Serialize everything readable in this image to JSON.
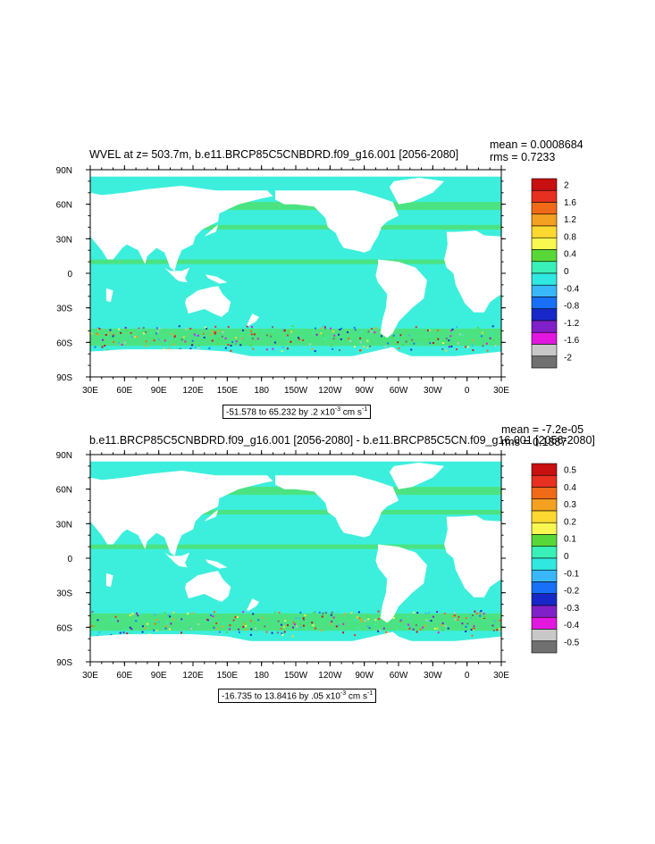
{
  "chart_data": [
    {
      "type": "heatmap",
      "title": "WVEL at z= 503.7m, b.e11.BRCP85C5CNBDRD.f09_g16.001 [2056-2080]",
      "stats": {
        "mean_label": "mean = 0.0008684",
        "rms_label": "rms = 0.7233"
      },
      "x_ticks": [
        "30E",
        "60E",
        "90E",
        "120E",
        "150E",
        "180",
        "150W",
        "120W",
        "90W",
        "60W",
        "30W",
        "0",
        "30E"
      ],
      "y_ticks": [
        "90N",
        "60N",
        "30N",
        "0",
        "30S",
        "60S",
        "90S"
      ],
      "xlim": [
        30,
        390
      ],
      "ylim": [
        -90,
        90
      ],
      "colorbar_labels": [
        "2",
        "1.6",
        "1.2",
        "0.8",
        "0.4",
        "0",
        "-0.4",
        "-0.8",
        "-1.2",
        "-1.6",
        "-2"
      ],
      "colorbar_colors": [
        "#c81010",
        "#e83020",
        "#f06a18",
        "#f4a020",
        "#fcd830",
        "#f8f850",
        "#58d838",
        "#38f0b8",
        "#30e8e0",
        "#38b8f8",
        "#1870f8",
        "#1828c8",
        "#8020c8",
        "#e018e0",
        "#c8c8c8",
        "#707070"
      ],
      "contour_info": "-51.578 to 65.232 by .2 x10",
      "contour_exp": "-3",
      "contour_units": " cm s",
      "contour_units_exp": "-1",
      "ocean_fill": "#3cefdc",
      "background": "#ffffff"
    },
    {
      "type": "heatmap",
      "title": "b.e11.BRCP85C5CNBDRD.f09_g16.001 [2056-2080] - b.e11.BRCP85C5CN.f09_g16.001 [2056-2080]",
      "stats": {
        "mean_label": "mean = -7.2e-05",
        "rms_label": "rms = 0.1887"
      },
      "x_ticks": [
        "30E",
        "60E",
        "90E",
        "120E",
        "150E",
        "180",
        "150W",
        "120W",
        "90W",
        "60W",
        "30W",
        "0",
        "30E"
      ],
      "y_ticks": [
        "90N",
        "60N",
        "30N",
        "0",
        "30S",
        "60S",
        "90S"
      ],
      "xlim": [
        30,
        390
      ],
      "ylim": [
        -90,
        90
      ],
      "colorbar_labels": [
        "0.5",
        "0.4",
        "0.3",
        "0.2",
        "0.1",
        "0",
        "-0.1",
        "-0.2",
        "-0.3",
        "-0.4",
        "-0.5"
      ],
      "colorbar_colors": [
        "#c81010",
        "#e83020",
        "#f06a18",
        "#f4a020",
        "#fcd830",
        "#f8f850",
        "#58d838",
        "#38f0b8",
        "#30e8e0",
        "#38b8f8",
        "#1870f8",
        "#1828c8",
        "#8020c8",
        "#e018e0",
        "#c8c8c8",
        "#707070"
      ],
      "contour_info": "-16.735 to 13.8416 by .05 x10",
      "contour_exp": "-3",
      "contour_units": " cm s",
      "contour_units_exp": "-1",
      "ocean_fill": "#3cefdc",
      "background": "#ffffff"
    }
  ]
}
